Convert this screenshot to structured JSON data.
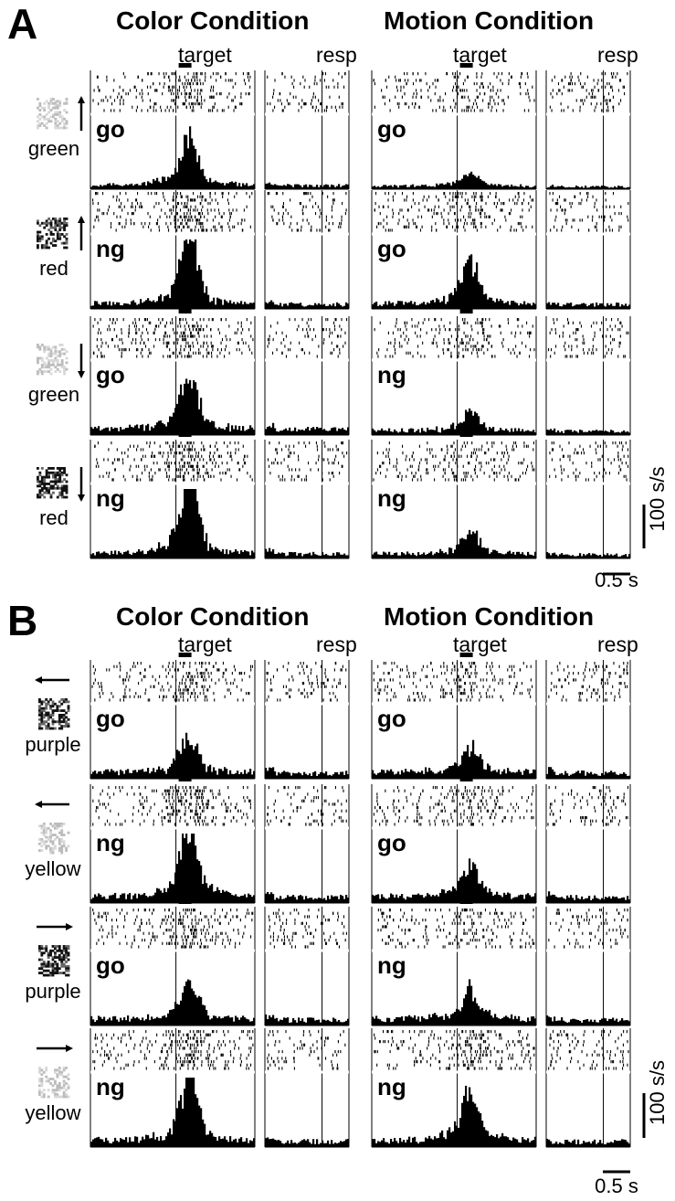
{
  "figure": {
    "panels": [
      {
        "letter": "A",
        "conditions": [
          "Color Condition",
          "Motion Condition"
        ],
        "epoch_labels": [
          "target",
          "resp"
        ],
        "rows": [
          {
            "stimulus_color": "green",
            "stimulus_dots": "light",
            "arrow": "up",
            "color_cond": "go",
            "motion_cond": "go"
          },
          {
            "stimulus_color": "red",
            "stimulus_dots": "dark",
            "arrow": "up",
            "color_cond": "ng",
            "motion_cond": "go"
          },
          {
            "stimulus_color": "green",
            "stimulus_dots": "light",
            "arrow": "down",
            "color_cond": "go",
            "motion_cond": "ng"
          },
          {
            "stimulus_color": "red",
            "stimulus_dots": "dark",
            "arrow": "down",
            "color_cond": "ng",
            "motion_cond": "ng"
          }
        ],
        "scale": {
          "rate": "100 s/s",
          "time": "0.5 s"
        }
      },
      {
        "letter": "B",
        "conditions": [
          "Color Condition",
          "Motion Condition"
        ],
        "epoch_labels": [
          "target",
          "resp"
        ],
        "rows": [
          {
            "stimulus_color": "purple",
            "stimulus_dots": "dark",
            "arrow": "left",
            "color_cond": "go",
            "motion_cond": "go"
          },
          {
            "stimulus_color": "yellow",
            "stimulus_dots": "light",
            "arrow": "left",
            "color_cond": "ng",
            "motion_cond": "go"
          },
          {
            "stimulus_color": "purple",
            "stimulus_dots": "dark",
            "arrow": "right",
            "color_cond": "go",
            "motion_cond": "ng"
          },
          {
            "stimulus_color": "yellow",
            "stimulus_dots": "light",
            "arrow": "right",
            "color_cond": "ng",
            "motion_cond": "ng"
          }
        ],
        "scale": {
          "rate": "100 s/s",
          "time": "0.5 s"
        }
      }
    ]
  },
  "chart_data": {
    "type": "bar",
    "description_of_units": "Peri-stimulus time histograms with spike rasters; firing rate in spikes/s",
    "bin_units": "s/s",
    "scale_bar_rate": 100,
    "scale_bar_time_s": 0.5,
    "histograms": [
      {
        "panel": "A",
        "row": 1,
        "condition": "Color Condition",
        "label": "go",
        "peak_rate": 95,
        "baseline_rate": 10
      },
      {
        "panel": "A",
        "row": 1,
        "condition": "Motion Condition",
        "label": "go",
        "peak_rate": 30,
        "baseline_rate": 7
      },
      {
        "panel": "A",
        "row": 2,
        "condition": "Color Condition",
        "label": "ng",
        "peak_rate": 150,
        "baseline_rate": 12
      },
      {
        "panel": "A",
        "row": 2,
        "condition": "Motion Condition",
        "label": "go",
        "peak_rate": 85,
        "baseline_rate": 12
      },
      {
        "panel": "A",
        "row": 3,
        "condition": "Color Condition",
        "label": "go",
        "peak_rate": 120,
        "baseline_rate": 15
      },
      {
        "panel": "A",
        "row": 3,
        "condition": "Motion Condition",
        "label": "ng",
        "peak_rate": 45,
        "baseline_rate": 10
      },
      {
        "panel": "A",
        "row": 4,
        "condition": "Color Condition",
        "label": "ng",
        "peak_rate": 160,
        "baseline_rate": 12
      },
      {
        "panel": "A",
        "row": 4,
        "condition": "Motion Condition",
        "label": "ng",
        "peak_rate": 55,
        "baseline_rate": 10
      },
      {
        "panel": "B",
        "row": 1,
        "condition": "Color Condition",
        "label": "go",
        "peak_rate": 80,
        "baseline_rate": 15
      },
      {
        "panel": "B",
        "row": 1,
        "condition": "Motion Condition",
        "label": "go",
        "peak_rate": 65,
        "baseline_rate": 15
      },
      {
        "panel": "B",
        "row": 2,
        "condition": "Color Condition",
        "label": "ng",
        "peak_rate": 150,
        "baseline_rate": 15
      },
      {
        "panel": "B",
        "row": 2,
        "condition": "Motion Condition",
        "label": "go",
        "peak_rate": 70,
        "baseline_rate": 15
      },
      {
        "panel": "B",
        "row": 3,
        "condition": "Color Condition",
        "label": "go",
        "peak_rate": 80,
        "baseline_rate": 15
      },
      {
        "panel": "B",
        "row": 3,
        "condition": "Motion Condition",
        "label": "ng",
        "peak_rate": 65,
        "baseline_rate": 15
      },
      {
        "panel": "B",
        "row": 4,
        "condition": "Color Condition",
        "label": "ng",
        "peak_rate": 140,
        "baseline_rate": 15
      },
      {
        "panel": "B",
        "row": 4,
        "condition": "Motion Condition",
        "label": "ng",
        "peak_rate": 110,
        "baseline_rate": 15
      }
    ]
  }
}
